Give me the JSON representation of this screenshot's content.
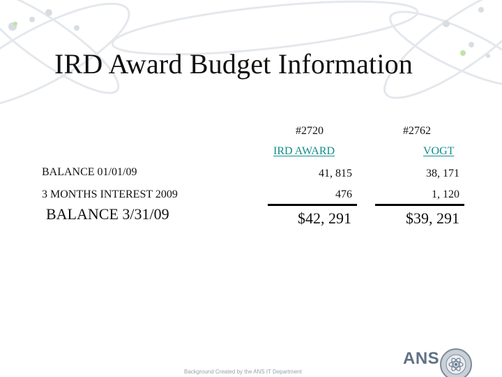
{
  "slide": {
    "title": "IRD Award Budget Information"
  },
  "columns": [
    {
      "number": "#2720",
      "name": "IRD AWARD"
    },
    {
      "number": "#2762",
      "name": "VOGT"
    }
  ],
  "rows": [
    {
      "label": "BALANCE 01/01/09",
      "values": [
        "41, 815",
        "38, 171"
      ]
    },
    {
      "label": "3 MONTHS INTEREST 2009",
      "values": [
        "476",
        "1, 120"
      ]
    },
    {
      "label": "BALANCE 3/31/09",
      "values": [
        "$42, 291",
        "$39, 291"
      ]
    }
  ],
  "footer": {
    "credit": "Background Created by the ANS IT Department",
    "logo": "ANS"
  },
  "colors": {
    "accent_teal": "#0f8d8a",
    "background_art": "#e6eaee",
    "logo_gray": "#5f7186"
  }
}
